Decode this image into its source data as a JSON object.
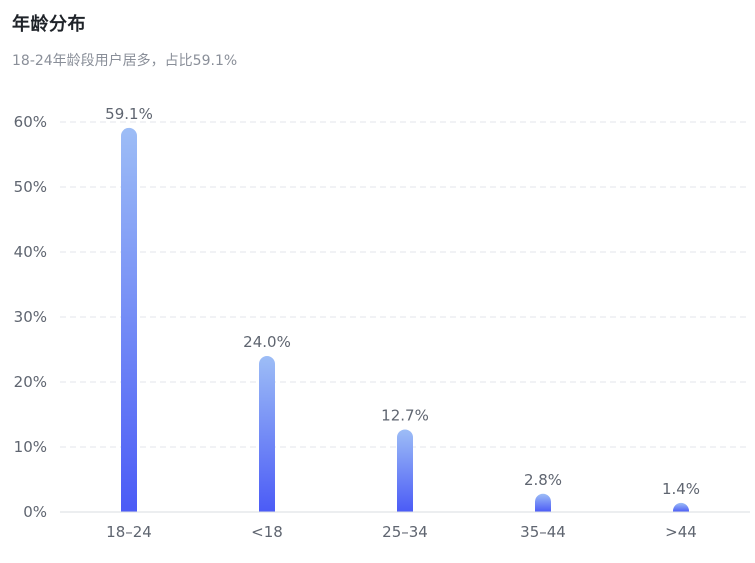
{
  "title": "年龄分布",
  "subtitle": "18-24年龄段用户居多，占比59.1%",
  "chart_data": {
    "type": "bar",
    "categories": [
      "18–24",
      "<18",
      "25–34",
      "35–44",
      ">44"
    ],
    "values": [
      59.1,
      24.0,
      12.7,
      2.8,
      1.4
    ],
    "data_labels": [
      "59.1%",
      "24.0%",
      "12.7%",
      "2.8%",
      "1.4%"
    ],
    "ylim": [
      0,
      60
    ],
    "yticks": [
      0,
      10,
      20,
      30,
      40,
      50,
      60
    ],
    "ytick_labels": [
      "0%",
      "10%",
      "20%",
      "30%",
      "40%",
      "50%",
      "60%"
    ],
    "grid": true,
    "colors": {
      "bar_top": "#9dbdf6",
      "bar_bottom": "#4b5bf6",
      "grid": "#e3e6eb",
      "axis": "#d9dce1"
    }
  }
}
